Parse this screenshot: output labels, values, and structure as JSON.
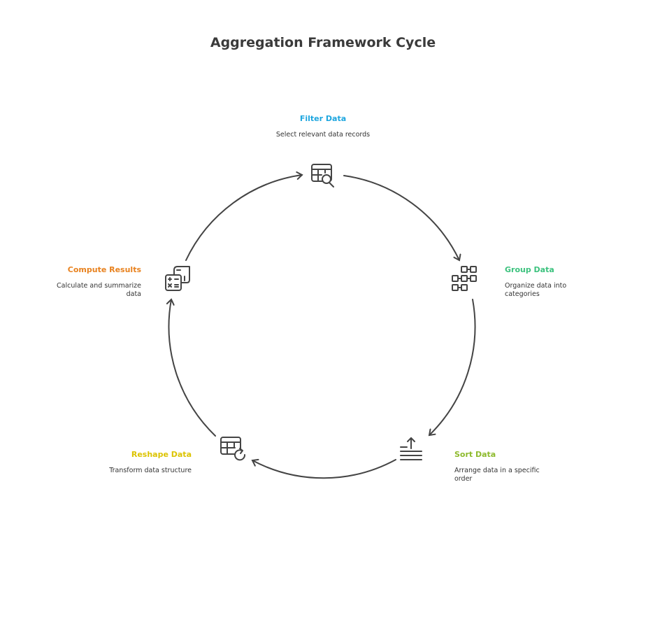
{
  "title": "Aggregation Framework Cycle",
  "steps": [
    {
      "label": "Filter Data",
      "description": "Select relevant data records",
      "color": "#1ea6df",
      "icon": "table-search-icon"
    },
    {
      "label": "Group Data",
      "description": "Organize data into categories",
      "color": "#3cc27e",
      "icon": "grid-nodes-icon"
    },
    {
      "label": "Sort Data",
      "description": "Arrange data in a specific order",
      "color": "#8dba2c",
      "icon": "sort-lines-icon"
    },
    {
      "label": "Reshape Data",
      "description": "Transform data structure",
      "color": "#dcc300",
      "icon": "table-refresh-icon"
    },
    {
      "label": "Compute Results",
      "description": "Calculate and summarize data",
      "color": "#e8821f",
      "icon": "calculator-icon"
    }
  ]
}
